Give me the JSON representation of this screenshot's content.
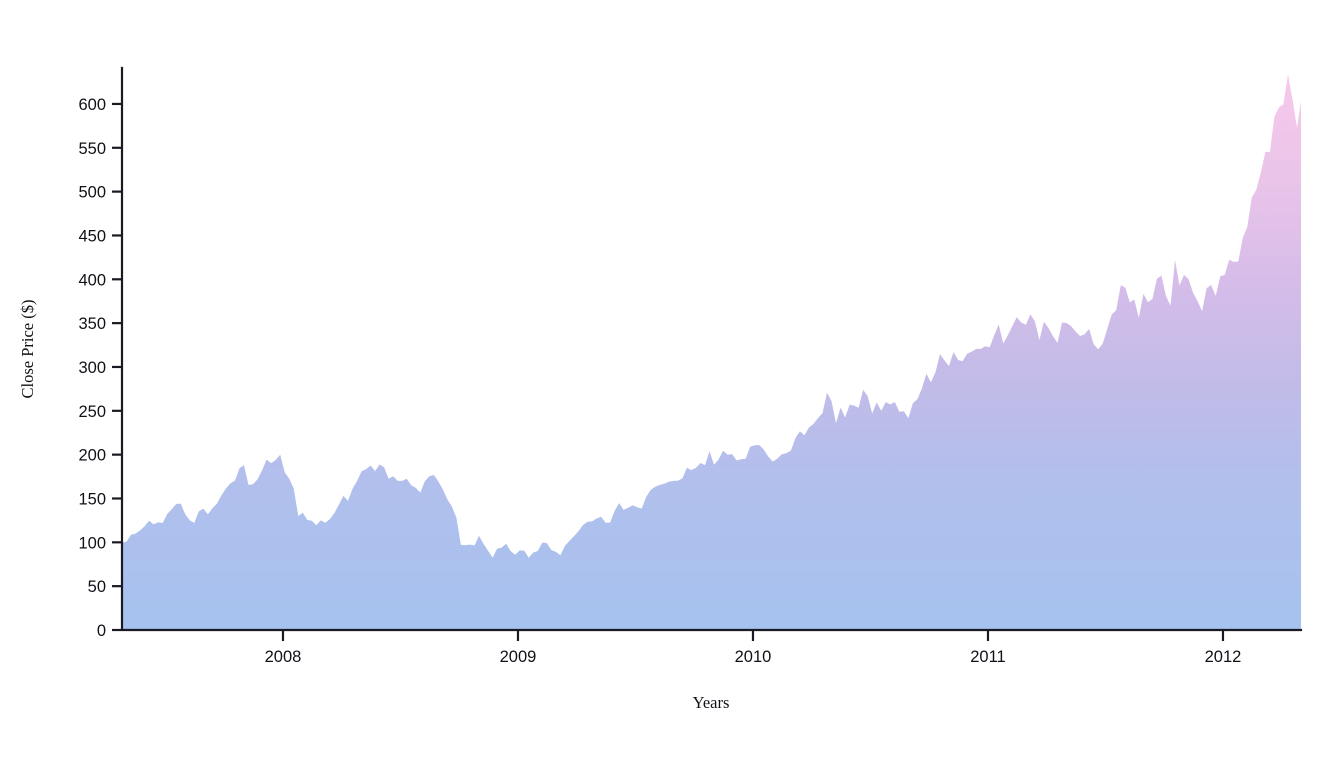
{
  "page": {
    "background_color": "#ffffff"
  },
  "chart_data": {
    "type": "area",
    "title": "",
    "xlabel": "Years",
    "ylabel": "Close Price ($)",
    "legend": "none",
    "grid": false,
    "x_axis": {
      "lim": [
        2007.315,
        2012.332
      ],
      "ticks": [
        2008,
        2009,
        2010,
        2011,
        2012
      ],
      "tick_labels": [
        "2008",
        "2009",
        "2010",
        "2011",
        "2012"
      ]
    },
    "y_axis": {
      "lim": [
        0,
        641
      ],
      "ticks": [
        0,
        50,
        100,
        150,
        200,
        250,
        300,
        350,
        400,
        450,
        500,
        550,
        600
      ],
      "tick_labels": [
        "0",
        "50",
        "100",
        "150",
        "200",
        "250",
        "300",
        "350",
        "400",
        "450",
        "500",
        "550",
        "600"
      ]
    },
    "series": [
      {
        "name": "Close Price",
        "cadence": "weekly",
        "x_start": 2007.315,
        "x_step": 0.0192308,
        "values": [
          99.8,
          100.8,
          108.7,
          110.0,
          113.6,
          118.4,
          124.6,
          120.5,
          123.0,
          122.0,
          132.3,
          137.7,
          143.8,
          143.9,
          131.9,
          125.0,
          122.1,
          135.3,
          138.5,
          131.8,
          138.8,
          144.2,
          153.5,
          161.4,
          167.3,
          170.4,
          184.7,
          187.9,
          165.4,
          166.4,
          172.0,
          182.2,
          194.3,
          190.4,
          193.9,
          199.8,
          180.0,
          172.7,
          161.4,
          130.0,
          133.8,
          125.5,
          124.6,
          119.5,
          125.0,
          122.3,
          126.6,
          133.3,
          143.0,
          153.1,
          147.1,
          161.0,
          169.7,
          180.9,
          183.5,
          187.6,
          181.2,
          188.8,
          185.6,
          172.4,
          175.3,
          170.1,
          170.1,
          172.6,
          165.2,
          162.1,
          156.7,
          169.6,
          175.3,
          176.8,
          169.5,
          160.2,
          148.9,
          140.9,
          128.2,
          97.1,
          96.8,
          97.4,
          96.4,
          107.6,
          98.2,
          90.2,
          82.6,
          92.7,
          94.0,
          98.3,
          90.0,
          85.8,
          90.8,
          90.6,
          82.3,
          88.4,
          90.1,
          99.7,
          99.2,
          91.2,
          89.3,
          85.3,
          95.9,
          101.6,
          106.9,
          112.7,
          119.6,
          123.4,
          123.9,
          127.2,
          129.2,
          122.4,
          122.5,
          135.8,
          144.7,
          137.0,
          139.5,
          142.4,
          140.0,
          138.5,
          151.8,
          160.0,
          163.4,
          165.5,
          166.8,
          169.2,
          170.1,
          170.3,
          172.9,
          185.0,
          182.4,
          184.9,
          190.5,
          188.1,
          203.9,
          188.5,
          194.3,
          204.4,
          199.9,
          200.6,
          193.3,
          194.7,
          195.4,
          209.0,
          210.7,
          211.0,
          205.9,
          197.8,
          192.1,
          195.5,
          200.4,
          201.7,
          204.6,
          218.9,
          226.6,
          222.2,
          230.9,
          235.0,
          241.8,
          247.4,
          270.8,
          261.1,
          235.9,
          253.8,
          242.3,
          256.9,
          256.0,
          253.5,
          274.1,
          266.7,
          246.9,
          259.6,
          250.0,
          259.9,
          257.3,
          260.1,
          249.1,
          249.6,
          241.6,
          258.8,
          263.4,
          275.4,
          292.3,
          282.5,
          294.1,
          314.7,
          307.5,
          301.0,
          317.1,
          308.0,
          306.7,
          315.0,
          317.4,
          320.6,
          320.6,
          323.6,
          322.6,
          336.1,
          348.5,
          326.7,
          336.1,
          346.5,
          356.9,
          350.6,
          348.2,
          360.0,
          352.0,
          330.7,
          351.5,
          344.6,
          335.1,
          327.5,
          350.7,
          350.1,
          346.7,
          340.5,
          335.2,
          337.4,
          343.4,
          325.9,
          320.3,
          326.4,
          343.3,
          359.7,
          364.9,
          393.3,
          390.5,
          373.6,
          377.0,
          356.0,
          383.6,
          374.0,
          377.5,
          400.5,
          404.3,
          381.3,
          369.8,
          422.0,
          392.9,
          405.0,
          400.2,
          384.6,
          374.9,
          363.6,
          389.7,
          393.6,
          381.0,
          403.3,
          405.0,
          422.4,
          419.8,
          420.3,
          447.3,
          459.7,
          493.4,
          502.1,
          522.4,
          545.2,
          545.2,
          585.6,
          596.1,
          599.6,
          633.7,
          605.2,
          573.0,
          603.0
        ]
      }
    ],
    "style": {
      "axis_color": "#1a1a24",
      "tick_label_color": "#111118",
      "fill_gradient_bottom_to_top": [
        {
          "offset": 0.0,
          "color": "#a6c2ef"
        },
        {
          "offset": 0.27,
          "color": "#b2bfec"
        },
        {
          "offset": 0.45,
          "color": "#c3bbe8"
        },
        {
          "offset": 0.62,
          "color": "#d6bce9"
        },
        {
          "offset": 0.8,
          "color": "#eac4e9"
        },
        {
          "offset": 1.0,
          "color": "#f7c9ec"
        }
      ]
    }
  }
}
